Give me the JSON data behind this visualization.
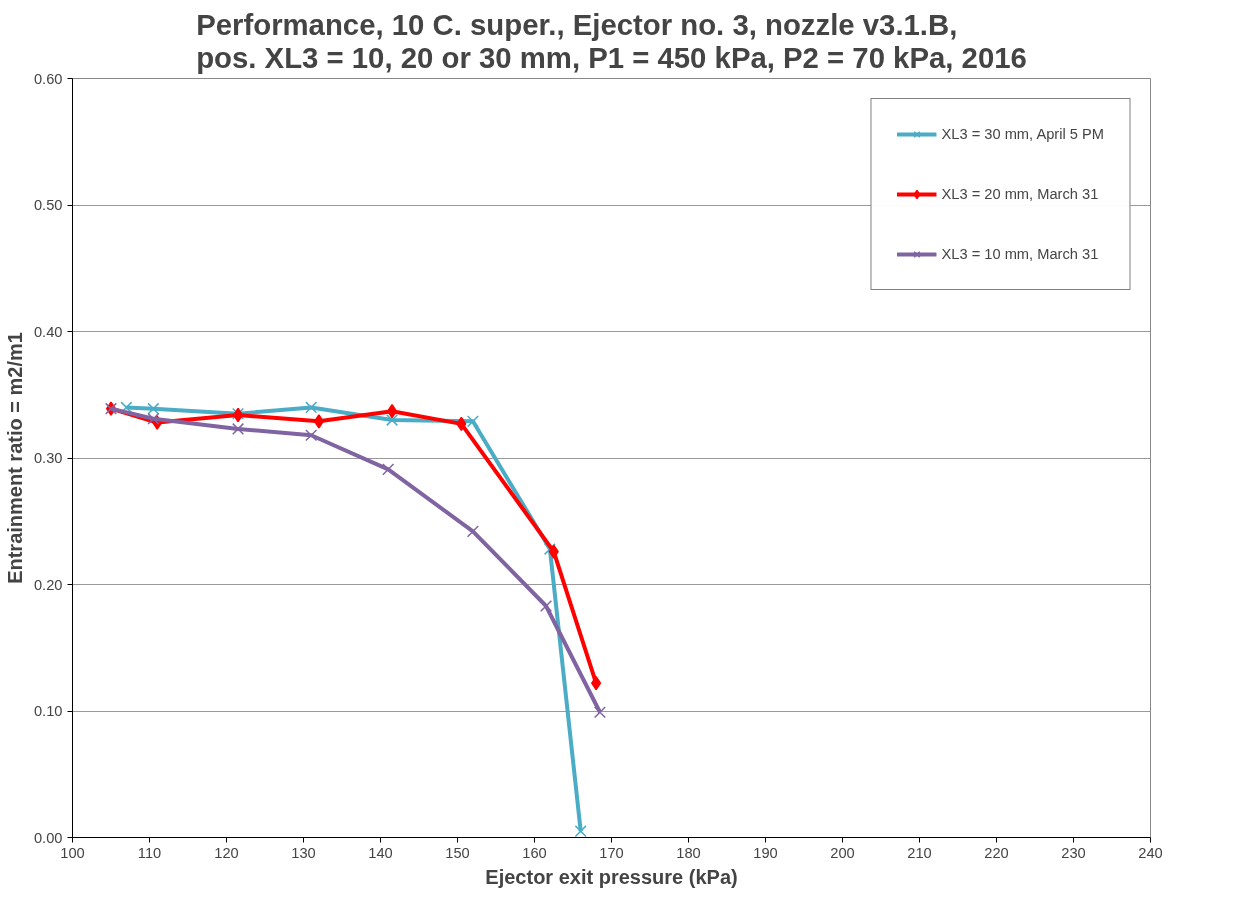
{
  "chart_data": {
    "type": "line",
    "title": "Performance, 10 C. super., Ejector no. 3, nozzle v3.1.B,\npos. XL3 = 10, 20 or 30 mm, P1 = 450 kPa, P2 = 70 kPa, 2016",
    "xlabel": "Ejector exit pressure (kPa)",
    "ylabel": "Entrainment ratio = m2/m1",
    "xlim": [
      100,
      240
    ],
    "xticks": [
      100,
      110,
      120,
      130,
      140,
      150,
      160,
      170,
      180,
      190,
      200,
      210,
      220,
      230,
      240
    ],
    "ylim": [
      0,
      0.6
    ],
    "yticks": [
      {
        "value": 0,
        "label": "0.00"
      },
      {
        "value": 0.1,
        "label": "0.10"
      },
      {
        "value": 0.2,
        "label": "0.20"
      },
      {
        "value": 0.3,
        "label": "0.30"
      },
      {
        "value": 0.4,
        "label": "0.40"
      },
      {
        "value": 0.5,
        "label": "0.50"
      },
      {
        "value": 0.6,
        "label": "0.60"
      }
    ],
    "grid": "y",
    "legend": "top right",
    "line_style": "solid",
    "series": [
      {
        "name": "XL3 = 30 mm, April 5 PM",
        "color": "#4bacc6",
        "marker": "cross",
        "x": [
          107,
          110.5,
          121.5,
          131,
          141.5,
          152,
          162,
          166
        ],
        "values": [
          0.34,
          0.339,
          0.335,
          0.34,
          0.33,
          0.329,
          0.228,
          0.005
        ]
      },
      {
        "name": "XL3 = 20 mm, March 31",
        "color": "#ff0000",
        "marker": "diamond",
        "x": [
          105,
          111,
          121.5,
          132,
          141.5,
          150.5,
          162.5,
          168
        ],
        "values": [
          0.339,
          0.328,
          0.334,
          0.329,
          0.337,
          0.327,
          0.226,
          0.122
        ]
      },
      {
        "name": "XL3 = 10 mm, March 31",
        "color": "#8064a2",
        "marker": "cross",
        "x": [
          105,
          110.5,
          121.5,
          131,
          141,
          152,
          161.5,
          168.5
        ],
        "values": [
          0.339,
          0.331,
          0.323,
          0.318,
          0.291,
          0.242,
          0.183,
          0.099
        ]
      }
    ]
  }
}
